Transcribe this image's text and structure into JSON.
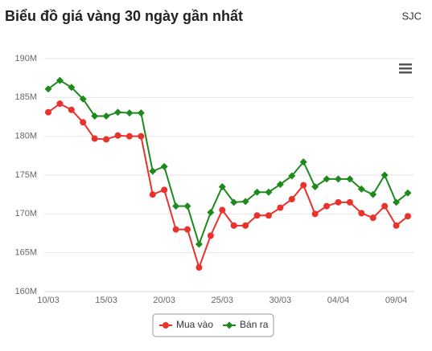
{
  "header": {
    "title": "Biểu đồ giá vàng 30 ngày gần nhất",
    "brand": "SJC"
  },
  "chart_data": {
    "type": "line",
    "categories": [
      "10/03",
      null,
      null,
      null,
      null,
      "15/03",
      null,
      null,
      null,
      null,
      "20/03",
      null,
      null,
      null,
      null,
      "25/03",
      null,
      null,
      null,
      null,
      "30/03",
      null,
      null,
      null,
      null,
      "04/04",
      null,
      null,
      null,
      null,
      "09/04",
      null
    ],
    "series": [
      {
        "name": "Mua vào",
        "color": "#e8322b",
        "marker": "circle",
        "values": [
          183.1,
          184.2,
          183.4,
          181.8,
          179.7,
          179.6,
          180.1,
          180.0,
          180.0,
          172.5,
          173.1,
          168.0,
          168.0,
          163.1,
          167.2,
          170.5,
          168.5,
          168.5,
          169.8,
          169.8,
          170.8,
          171.9,
          173.7,
          170.0,
          171.0,
          171.5,
          171.5,
          170.1,
          169.5,
          171.0,
          168.5,
          169.7
        ]
      },
      {
        "name": "Bán ra",
        "color": "#1e8a1e",
        "marker": "diamond",
        "values": [
          186.1,
          187.2,
          186.3,
          184.8,
          182.6,
          182.6,
          183.1,
          183.0,
          183.0,
          175.5,
          176.1,
          171.0,
          171.0,
          166.1,
          170.2,
          173.5,
          171.5,
          171.6,
          172.8,
          172.8,
          173.8,
          174.9,
          176.7,
          173.5,
          174.5,
          174.5,
          174.5,
          173.2,
          172.5,
          175.0,
          171.5,
          172.7
        ]
      }
    ],
    "ylim": [
      160,
      190
    ],
    "yticks": [
      {
        "value": 160,
        "label": "160M"
      },
      {
        "value": 165,
        "label": "165M"
      },
      {
        "value": 170,
        "label": "170M"
      },
      {
        "value": 175,
        "label": "175M"
      },
      {
        "value": 180,
        "label": "180M"
      },
      {
        "value": 185,
        "label": "185M"
      },
      {
        "value": 190,
        "label": "190M"
      }
    ],
    "grid": true,
    "legend": "bottom"
  }
}
